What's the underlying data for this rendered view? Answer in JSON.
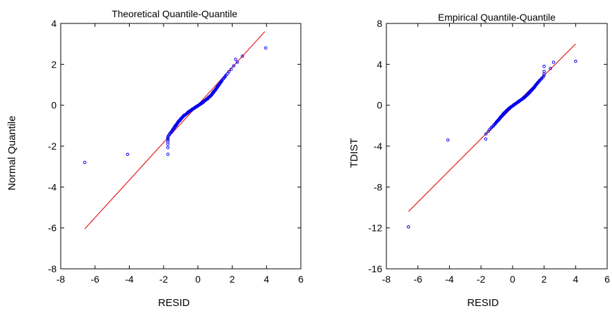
{
  "colors": {
    "points": "#0000ee",
    "reference_line": "#e41a1c",
    "frame": "#000000"
  },
  "chart_data": [
    {
      "type": "scatter",
      "title": "Theoretical Quantile-Quantile",
      "xlabel": "RESID",
      "ylabel": "Normal Quantile",
      "xlim": [
        -8,
        6
      ],
      "ylim": [
        -8,
        4
      ],
      "xticks": [
        "-8",
        "-6",
        "-4",
        "-2",
        "0",
        "2",
        "4",
        "6"
      ],
      "yticks": [
        "-8",
        "-6",
        "-4",
        "-2",
        "0",
        "2",
        "4"
      ],
      "grid": false,
      "reference_line": {
        "x": [
          -6.6,
          3.9
        ],
        "y": [
          -6.05,
          3.6
        ]
      },
      "outliers": [
        [
          -6.6,
          -2.8
        ],
        [
          -4.1,
          -2.4
        ],
        [
          2.3,
          2.1
        ],
        [
          2.6,
          2.4
        ],
        [
          3.95,
          2.8
        ]
      ],
      "body": {
        "x_range": [
          -1.75,
          2.2
        ],
        "y_range": [
          -2.2,
          2.05
        ]
      }
    },
    {
      "type": "scatter",
      "title": "Empirical Quantile-Quantile",
      "xlabel": "RESID",
      "ylabel": "TDIST",
      "xlim": [
        -8,
        6
      ],
      "ylim": [
        -16,
        8
      ],
      "xticks": [
        "-8",
        "-6",
        "-4",
        "-2",
        "0",
        "2",
        "4",
        "6"
      ],
      "yticks": [
        "-16",
        "-12",
        "-8",
        "-4",
        "0",
        "4",
        "8"
      ],
      "grid": false,
      "reference_line": {
        "x": [
          -6.6,
          4.0
        ],
        "y": [
          -10.4,
          6.0
        ]
      },
      "outliers": [
        [
          -6.6,
          -11.9
        ],
        [
          -4.1,
          -3.4
        ],
        [
          2.6,
          4.2
        ],
        [
          4.0,
          4.3
        ],
        [
          2.4,
          3.6
        ]
      ],
      "body": {
        "x_range": [
          -1.7,
          2.0
        ],
        "y_range": [
          -3.0,
          3.5
        ]
      }
    }
  ]
}
